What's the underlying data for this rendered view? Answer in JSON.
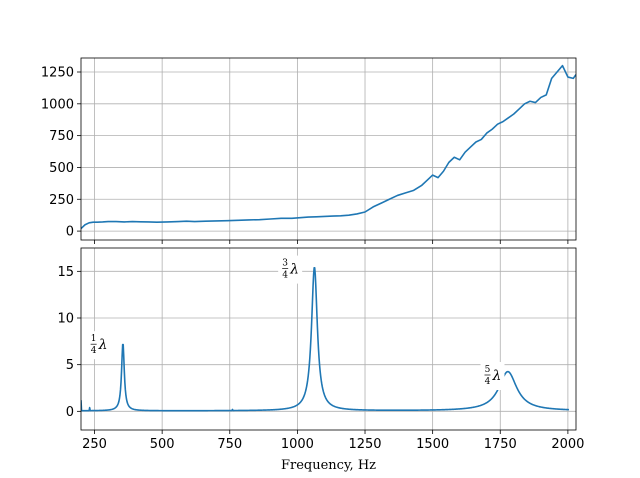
{
  "chart_data": [
    {
      "type": "line",
      "title": "",
      "xlabel": "",
      "ylabel": "",
      "xlim": [
        200,
        2030
      ],
      "ylim": [
        -70,
        1360
      ],
      "grid": true,
      "xticks": [
        250,
        500,
        750,
        1000,
        1250,
        1500,
        1750,
        2000
      ],
      "xtick_labels_visible": false,
      "yticks": [
        0,
        250,
        500,
        750,
        1000,
        1250
      ],
      "ytick_labels": [
        "0",
        "250",
        "500",
        "750",
        "1000",
        "1250"
      ],
      "series": [
        {
          "color": "#1f77b4",
          "x": [
            200,
            215,
            230,
            245,
            260,
            280,
            300,
            330,
            360,
            390,
            420,
            450,
            480,
            520,
            560,
            590,
            620,
            660,
            700,
            740,
            780,
            820,
            860,
            900,
            940,
            980,
            1010,
            1040,
            1070,
            1100,
            1130,
            1160,
            1190,
            1220,
            1250,
            1280,
            1310,
            1340,
            1370,
            1400,
            1430,
            1460,
            1480,
            1500,
            1520,
            1540,
            1560,
            1580,
            1600,
            1620,
            1640,
            1660,
            1680,
            1700,
            1720,
            1740,
            1760,
            1780,
            1800,
            1820,
            1840,
            1860,
            1880,
            1900,
            1920,
            1940,
            1960,
            1980,
            2000,
            2020,
            2030
          ],
          "y": [
            20,
            50,
            65,
            70,
            70,
            72,
            75,
            75,
            72,
            75,
            73,
            72,
            70,
            72,
            75,
            78,
            75,
            78,
            80,
            82,
            85,
            88,
            90,
            95,
            100,
            100,
            105,
            110,
            112,
            115,
            118,
            120,
            125,
            135,
            150,
            190,
            220,
            250,
            280,
            300,
            320,
            360,
            400,
            440,
            420,
            470,
            540,
            580,
            560,
            620,
            660,
            700,
            720,
            770,
            800,
            840,
            860,
            890,
            920,
            960,
            1000,
            1020,
            1010,
            1050,
            1070,
            1200,
            1250,
            1300,
            1210,
            1200,
            1230
          ]
        }
      ]
    },
    {
      "type": "line",
      "title": "",
      "xlabel": "Frequency, Hz",
      "ylabel": "",
      "xlim": [
        200,
        2030
      ],
      "ylim": [
        -2,
        17.5
      ],
      "grid": true,
      "xticks": [
        250,
        500,
        750,
        1000,
        1250,
        1500,
        1750,
        2000
      ],
      "xtick_labels": [
        "250",
        "500",
        "750",
        "1000",
        "1250",
        "1500",
        "1750",
        "2000"
      ],
      "yticks": [
        0,
        5,
        10,
        15
      ],
      "ytick_labels": [
        "0",
        "5",
        "10",
        "15"
      ],
      "annotations": [
        {
          "num": "1",
          "den": "4",
          "symbol": "λ",
          "x": 232,
          "y": 7.3
        },
        {
          "num": "3",
          "den": "4",
          "symbol": "λ",
          "x": 940,
          "y": 15.4
        },
        {
          "num": "5",
          "den": "4",
          "symbol": "λ",
          "x": 1688,
          "y": 4.0
        }
      ],
      "series": [
        {
          "color": "#1f77b4",
          "resonances": [
            {
              "f0": 355,
              "amp": 7.3,
              "width": 6
            },
            {
              "f0": 1063,
              "amp": 15.4,
              "width": 13
            },
            {
              "f0": 1778,
              "amp": 4.2,
              "width": 40
            }
          ],
          "spikes": [
            {
              "x": 200,
              "y": 1.2
            },
            {
              "x": 232,
              "y": 0.4
            },
            {
              "x": 760,
              "y": 0.2
            }
          ]
        }
      ]
    }
  ]
}
